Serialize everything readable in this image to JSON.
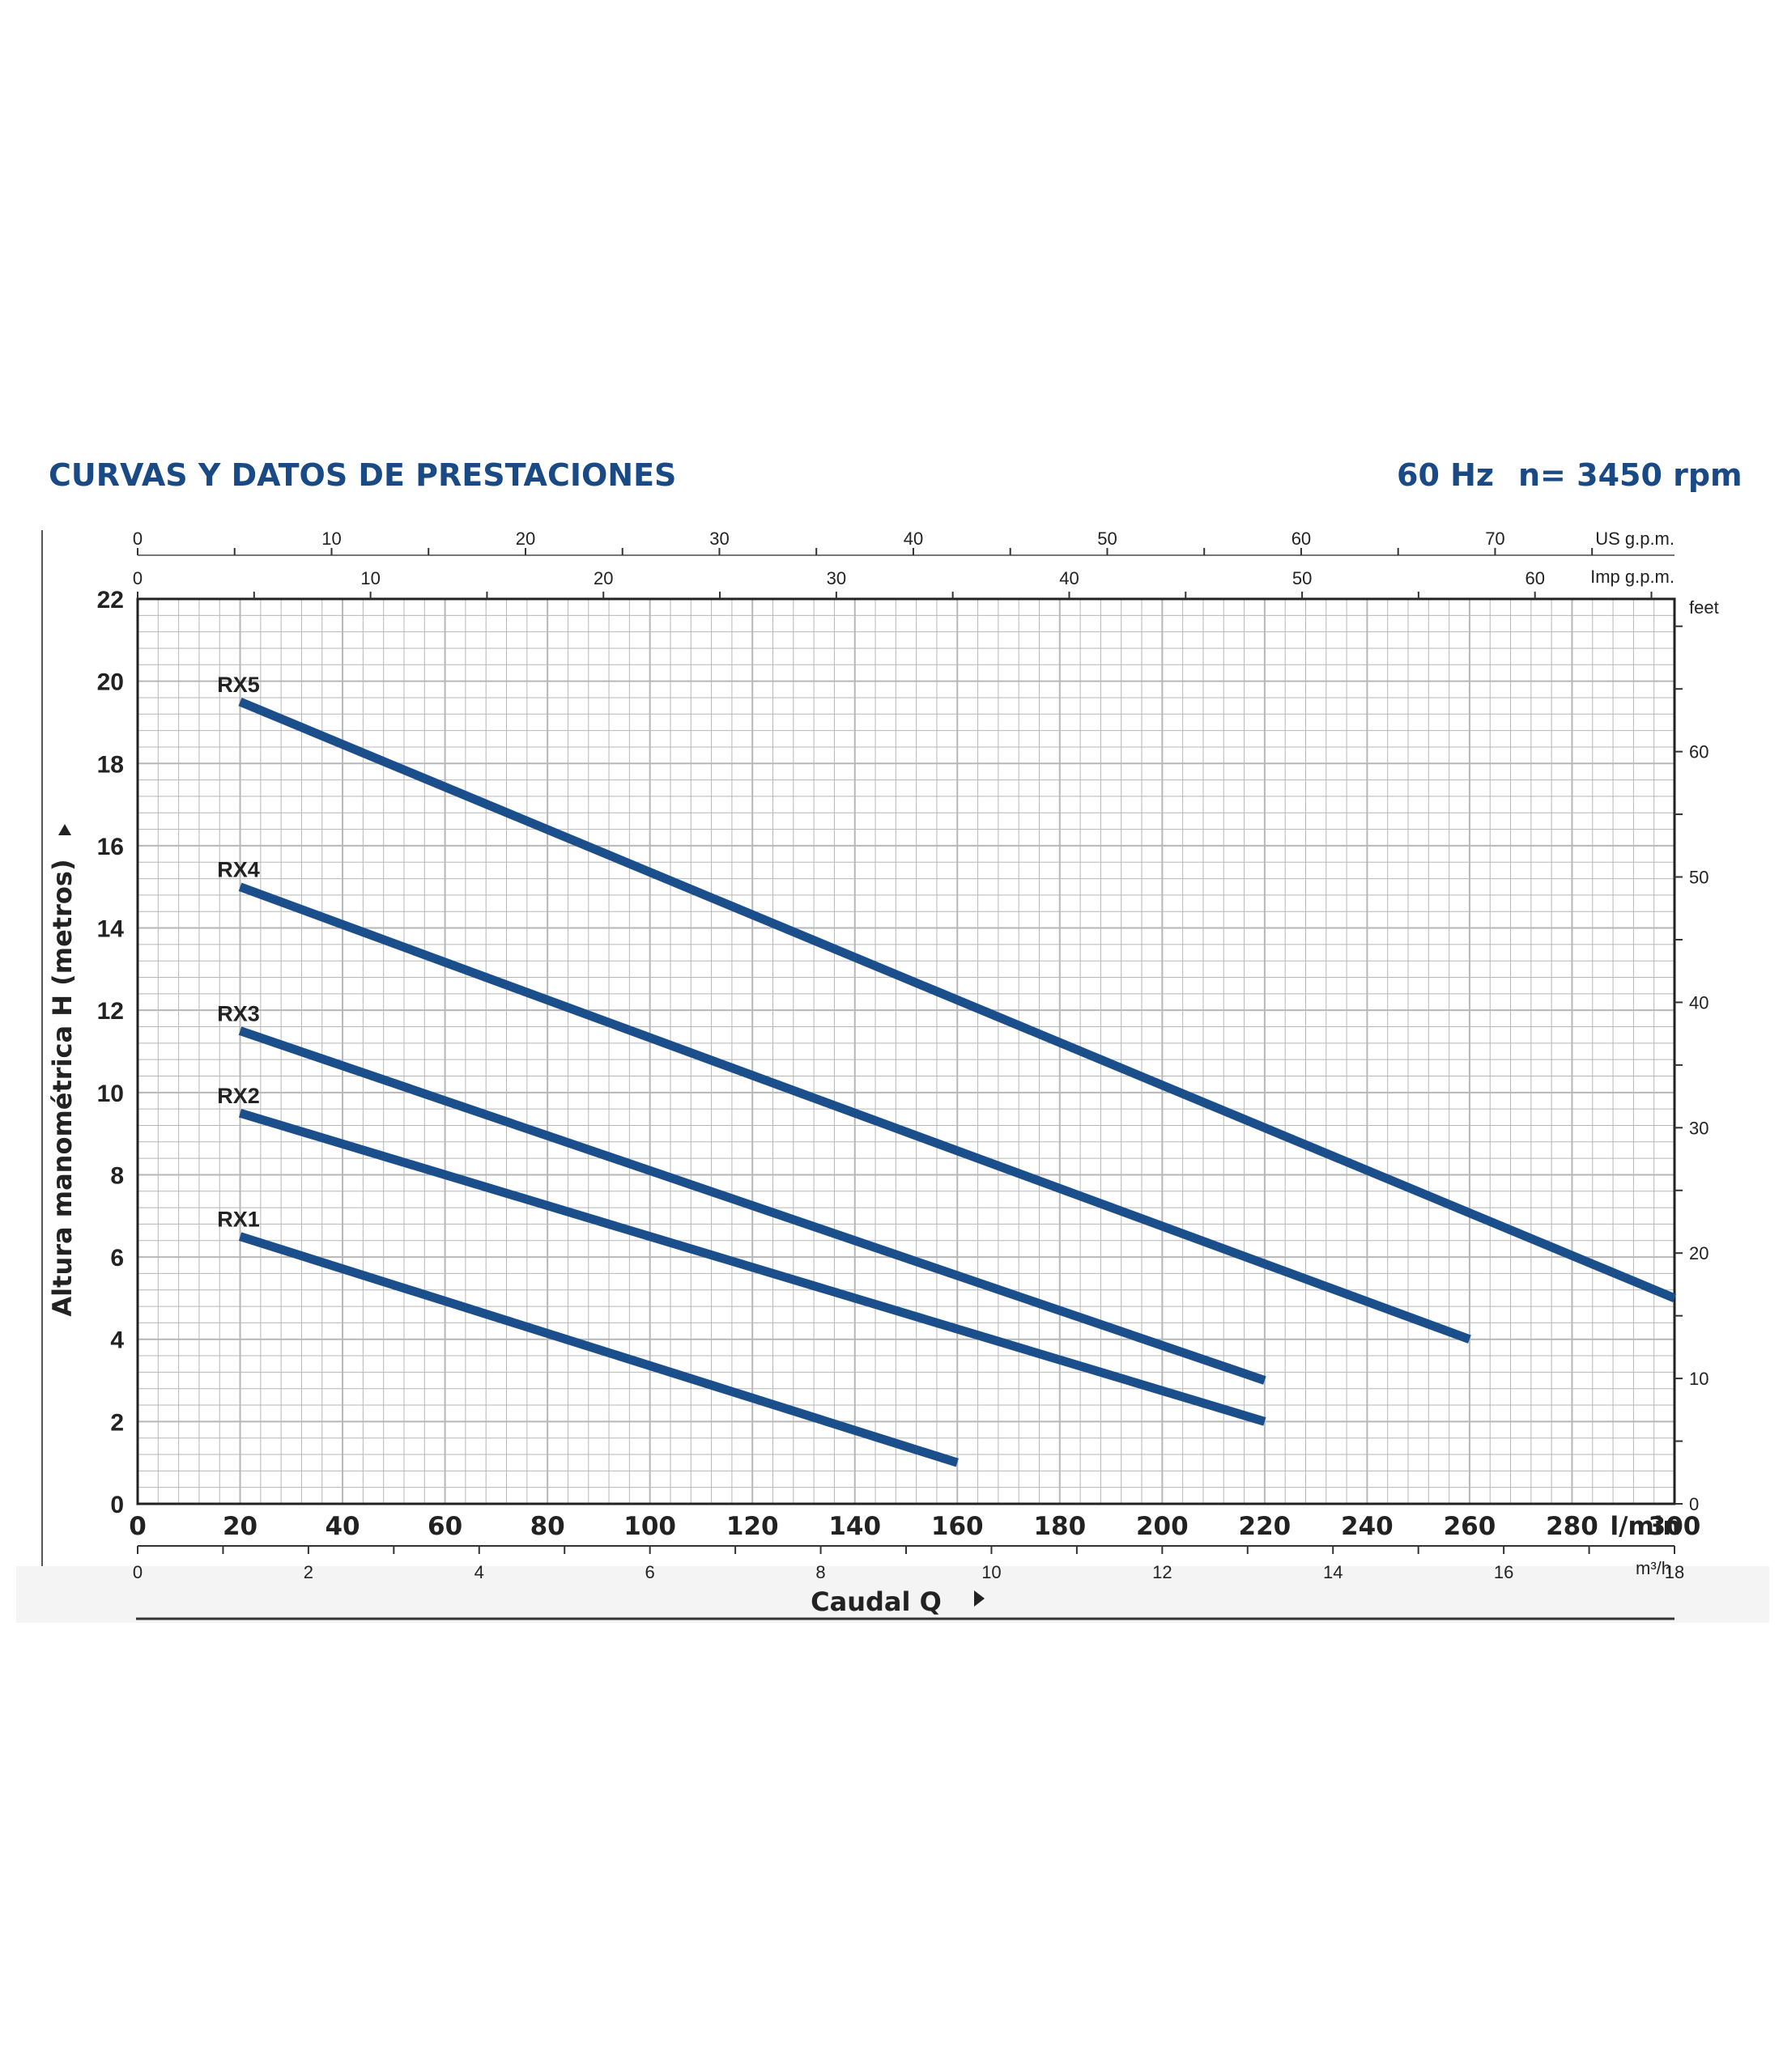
{
  "header": {
    "title": "CURVAS Y DATOS DE PRESTACIONES",
    "frequency": "60 Hz",
    "speed": "n= 3450 rpm"
  },
  "chart_data": {
    "type": "line",
    "title": "CURVAS Y DATOS DE PRESTACIONES",
    "xlabel": "Caudal Q",
    "ylabel": "Altura manométrica H (metros)",
    "xlim": [
      0,
      300
    ],
    "ylim": [
      0,
      22
    ],
    "grid": true,
    "x_unit": "l/min",
    "x_ticks": [
      0,
      20,
      40,
      60,
      80,
      100,
      120,
      140,
      160,
      180,
      200,
      220,
      240,
      260,
      280,
      300
    ],
    "y_ticks": [
      0,
      2,
      4,
      6,
      8,
      10,
      12,
      14,
      16,
      18,
      20,
      22
    ],
    "secondary_axes": {
      "us_gpm": {
        "label": "US g.p.m.",
        "ticks": [
          "0",
          "10",
          "20",
          "30",
          "40",
          "50",
          "60",
          "70"
        ],
        "values": [
          0,
          10,
          20,
          30,
          40,
          50,
          60,
          70
        ]
      },
      "imp_gpm": {
        "label": "Imp g.p.m.",
        "ticks": [
          "0",
          "10",
          "20",
          "30",
          "40",
          "50",
          "60"
        ],
        "values": [
          0,
          10,
          20,
          30,
          40,
          50,
          60
        ]
      },
      "m3h": {
        "label": "m³/h",
        "ticks": [
          "0",
          "2",
          "4",
          "6",
          "8",
          "10",
          "12",
          "14",
          "16",
          "18"
        ],
        "values": [
          0,
          2,
          4,
          6,
          8,
          10,
          12,
          14,
          16,
          18
        ]
      },
      "feet": {
        "label": "feet",
        "ticks": [
          "0",
          "10",
          "20",
          "30",
          "40",
          "50",
          "60"
        ],
        "values": [
          0,
          10,
          20,
          30,
          40,
          50,
          60
        ]
      }
    },
    "series": [
      {
        "name": "RX5",
        "x": [
          20,
          300
        ],
        "y": [
          19.5,
          5
        ]
      },
      {
        "name": "RX4",
        "x": [
          20,
          260
        ],
        "y": [
          15,
          4
        ]
      },
      {
        "name": "RX3",
        "x": [
          20,
          220
        ],
        "y": [
          11.5,
          3
        ]
      },
      {
        "name": "RX2",
        "x": [
          20,
          220
        ],
        "y": [
          9.5,
          2
        ]
      },
      {
        "name": "RX1",
        "x": [
          20,
          160
        ],
        "y": [
          6.5,
          1
        ]
      }
    ],
    "colors": {
      "curve": "#1b4f8c",
      "grid": "#b7b7b7",
      "axis": "#222222",
      "header": "#1a4a85"
    }
  }
}
